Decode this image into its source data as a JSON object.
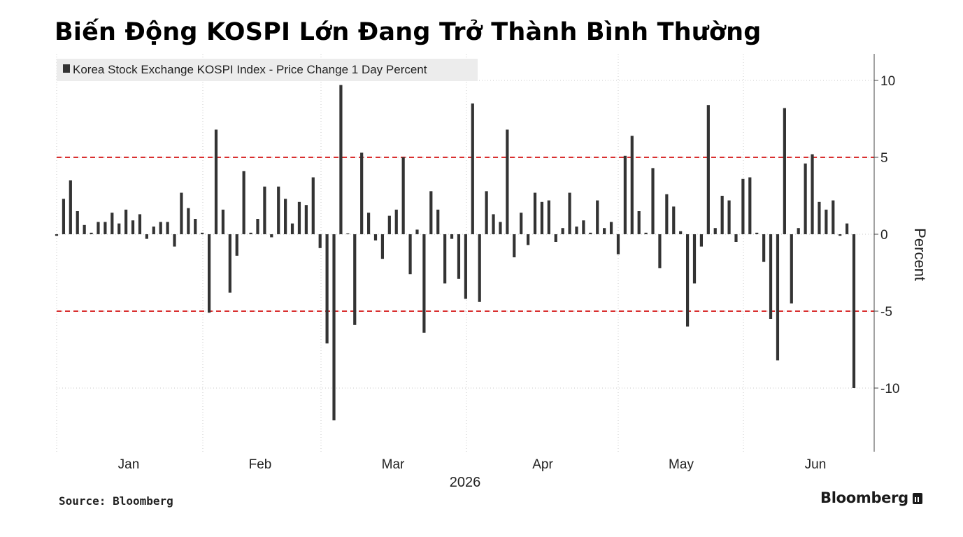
{
  "chart_data": {
    "type": "bar",
    "title": "Biến Động KOSPI Lớn Đang Trở Thành Bình Thường",
    "legend": {
      "label": "Korea Stock Exchange KOSPI Index - Price Change 1 Day Percent",
      "placement": "top-left"
    },
    "ylabel": "Percent",
    "ylim": [
      -14,
      12
    ],
    "yticks": [
      10,
      5,
      0,
      -5,
      -10
    ],
    "reference_lines": [
      5,
      -5
    ],
    "reference_line_color": "#d93030",
    "bar_color": "#333333",
    "grid": true,
    "x_year_label": "2026",
    "months": [
      "Jan",
      "Feb",
      "Mar",
      "Apr",
      "May",
      "Jun"
    ],
    "values": [
      -0.1,
      2.3,
      3.5,
      1.5,
      0.6,
      0.1,
      0.8,
      0.8,
      1.4,
      0.7,
      1.6,
      0.9,
      1.3,
      -0.3,
      0.5,
      0.8,
      0.8,
      -0.8,
      2.7,
      1.7,
      1.0,
      0.1,
      -5.1,
      6.8,
      1.6,
      -3.8,
      -1.4,
      4.1,
      0.1,
      1.0,
      3.1,
      -0.2,
      3.1,
      2.3,
      0.7,
      2.1,
      1.9,
      3.7,
      -0.9,
      -7.1,
      -12.1,
      9.7,
      0.0,
      -5.9,
      5.3,
      1.4,
      -0.4,
      -1.6,
      1.2,
      1.6,
      5.0,
      -2.6,
      0.3,
      -6.4,
      2.8,
      1.6,
      -3.2,
      -0.3,
      -2.9,
      -4.2,
      8.5,
      -4.4,
      2.8,
      1.3,
      0.8,
      6.8,
      -1.5,
      1.4,
      -0.7,
      2.7,
      2.1,
      2.2,
      -0.5,
      0.4,
      2.7,
      0.5,
      0.9,
      0.1,
      2.2,
      0.4,
      0.8,
      -1.3,
      5.1,
      6.4,
      1.5,
      0.1,
      4.3,
      -2.2,
      2.6,
      1.8,
      0.2,
      -6.0,
      -3.2,
      -0.8,
      8.4,
      0.4,
      2.5,
      2.2,
      -0.5,
      3.6,
      3.7,
      0.1,
      -1.8,
      -5.5,
      -8.2,
      8.2,
      -4.5,
      0.4,
      4.6,
      5.2,
      2.1,
      1.6,
      2.2,
      -0.1,
      0.7,
      -10.0
    ]
  },
  "source_label": "Source: Bloomberg",
  "brand": "Bloomberg"
}
